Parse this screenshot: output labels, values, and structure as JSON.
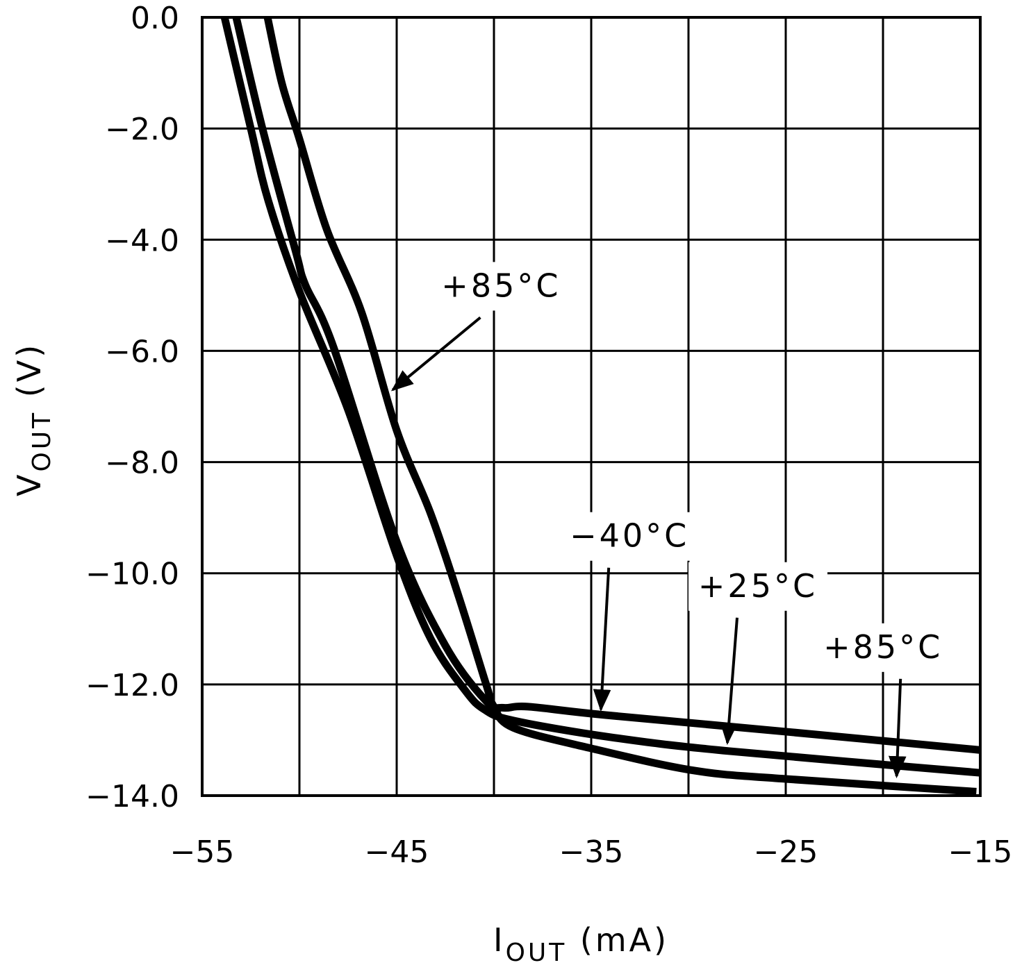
{
  "chart_data": {
    "type": "line",
    "title": "",
    "xlabel": {
      "main": "I",
      "sub": "OUT",
      "unit": " (mA)"
    },
    "ylabel": {
      "main": "V",
      "sub": "OUT",
      "unit": " (V)"
    },
    "xlim": [
      -55,
      -15
    ],
    "ylim": [
      -14,
      0
    ],
    "xticks": [
      -55,
      -45,
      -35,
      -25,
      -15
    ],
    "xtick_labels": [
      "−55",
      "−45",
      "−35",
      "−25",
      "−15"
    ],
    "yticks": [
      0,
      -2,
      -4,
      -6,
      -8,
      -10,
      -12,
      -14
    ],
    "ytick_labels": [
      "0.0",
      "−2.0",
      "−4.0",
      "−6.0",
      "−8.0",
      "−10.0",
      "−12.0",
      "−14.0"
    ],
    "grid": true,
    "line_color": "#000000",
    "series": [
      {
        "name": "+85°C",
        "points": [
          [
            -51.64,
            0
          ],
          [
            -50.9,
            -1.19
          ],
          [
            -50.0,
            -2.19
          ],
          [
            -48.6,
            -3.81
          ],
          [
            -46.8,
            -5.31
          ],
          [
            -45.0,
            -7.43
          ],
          [
            -43.25,
            -8.93
          ],
          [
            -41.8,
            -10.43
          ],
          [
            -40.4,
            -12.0
          ],
          [
            -40.0,
            -12.4
          ],
          [
            -39.0,
            -12.78
          ],
          [
            -35,
            -13.15
          ],
          [
            -29.7,
            -13.55
          ],
          [
            -25,
            -13.7
          ],
          [
            -15.2,
            -13.93
          ]
        ]
      },
      {
        "name": "+25°C",
        "points": [
          [
            -53.85,
            0
          ],
          [
            -52.5,
            -2.0
          ],
          [
            -51.6,
            -3.3
          ],
          [
            -50.0,
            -4.93
          ],
          [
            -47.5,
            -7.06
          ],
          [
            -45.0,
            -9.68
          ],
          [
            -43.25,
            -11.18
          ],
          [
            -41.5,
            -12.1
          ],
          [
            -40.5,
            -12.45
          ],
          [
            -39.0,
            -12.65
          ],
          [
            -34,
            -12.95
          ],
          [
            -27.9,
            -13.2
          ],
          [
            -15,
            -13.59
          ]
        ]
      },
      {
        "name": "−40°C",
        "points": [
          [
            -53.25,
            0
          ],
          [
            -51.9,
            -2.0
          ],
          [
            -50.2,
            -4.2
          ],
          [
            -49.7,
            -4.81
          ],
          [
            -48.25,
            -5.93
          ],
          [
            -45.0,
            -9.43
          ],
          [
            -42.5,
            -11.3
          ],
          [
            -40.4,
            -12.3
          ],
          [
            -39.5,
            -12.42
          ],
          [
            -38.25,
            -12.4
          ],
          [
            -34.3,
            -12.55
          ],
          [
            -25,
            -12.85
          ],
          [
            -15,
            -13.18
          ]
        ]
      }
    ],
    "annotations": [
      {
        "text": "+85°C",
        "arrow_from": [
          -40.7,
          -5.4
        ],
        "arrow_to": [
          -45.2,
          -6.7
        ]
      },
      {
        "text": "−40°C",
        "arrow_from": [
          -34.1,
          -9.9
        ],
        "arrow_to": [
          -34.5,
          -12.45
        ]
      },
      {
        "text": "+25°C",
        "arrow_from": [
          -27.5,
          -10.8
        ],
        "arrow_to": [
          -28.0,
          -13.05
        ]
      },
      {
        "text": "+85°C",
        "arrow_from": [
          -19.1,
          -11.9
        ],
        "arrow_to": [
          -19.3,
          -13.65
        ]
      }
    ]
  }
}
